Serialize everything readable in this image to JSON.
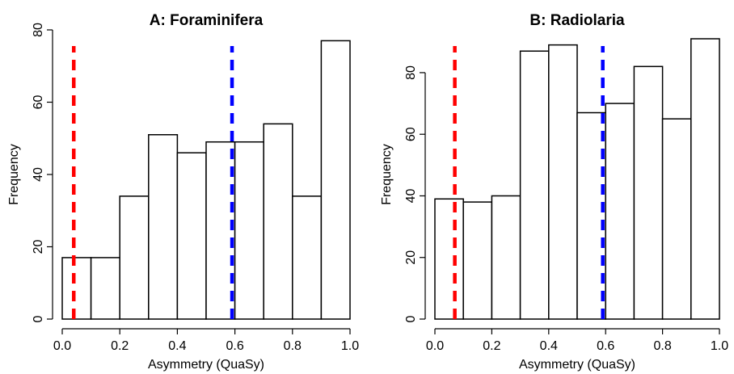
{
  "chart_data": [
    {
      "type": "bar",
      "title": "A: Foraminifera",
      "xlabel": "Asymmetry (QuaSy)",
      "ylabel": "Frequency",
      "bin_edges": [
        0.0,
        0.1,
        0.2,
        0.3,
        0.4,
        0.5,
        0.6,
        0.7,
        0.8,
        0.9,
        1.0
      ],
      "values": [
        17,
        17,
        34,
        51,
        46,
        49,
        49,
        54,
        34,
        77
      ],
      "xlim": [
        0,
        1
      ],
      "ylim": [
        0,
        80
      ],
      "xticks": [
        "0.0",
        "0.2",
        "0.4",
        "0.6",
        "0.8",
        "1.0"
      ],
      "yticks": [
        "0",
        "20",
        "40",
        "60",
        "80"
      ],
      "vlines": [
        {
          "x": 0.04,
          "color": "#ff0000",
          "style": "dashed"
        },
        {
          "x": 0.59,
          "color": "#0000ff",
          "style": "dashed"
        }
      ],
      "grid": false
    },
    {
      "type": "bar",
      "title": "B: Radiolaria",
      "xlabel": "Asymmetry (QuaSy)",
      "ylabel": "Frequency",
      "bin_edges": [
        0.0,
        0.1,
        0.2,
        0.3,
        0.4,
        0.5,
        0.6,
        0.7,
        0.8,
        0.9,
        1.0
      ],
      "values": [
        39,
        38,
        40,
        87,
        89,
        67,
        70,
        82,
        65,
        91
      ],
      "xlim": [
        0,
        1
      ],
      "ylim": [
        0,
        91
      ],
      "xticks": [
        "0.0",
        "0.2",
        "0.4",
        "0.6",
        "0.8",
        "1.0"
      ],
      "yticks": [
        "0",
        "20",
        "40",
        "60",
        "80"
      ],
      "vlines": [
        {
          "x": 0.07,
          "color": "#ff0000",
          "style": "dashed"
        },
        {
          "x": 0.59,
          "color": "#0000ff",
          "style": "dashed"
        }
      ],
      "grid": false
    }
  ]
}
